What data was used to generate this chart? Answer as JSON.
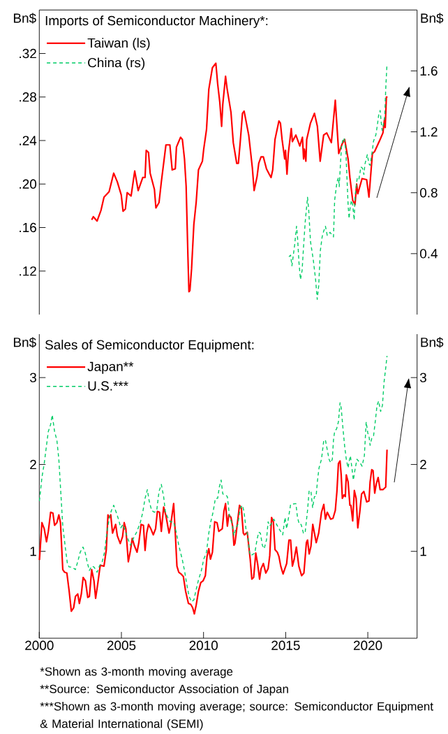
{
  "chart_data": [
    {
      "type": "line",
      "title": "Imports of Semiconductor Machinery*:",
      "ylabel": "Bn$",
      "y2label": "Bn$",
      "xlim": [
        2000,
        2023
      ],
      "ylim": [
        0.08,
        0.36
      ],
      "yticks": [
        {
          "value": 0.12,
          "label": ".12"
        },
        {
          "value": 0.16,
          "label": ".16"
        },
        {
          "value": 0.2,
          "label": ".20"
        },
        {
          "value": 0.24,
          "label": ".24"
        },
        {
          "value": 0.28,
          "label": ".28"
        },
        {
          "value": 0.32,
          "label": ".32"
        }
      ],
      "y2lim": [
        0,
        2.0
      ],
      "y2ticks": [
        0.4,
        0.8,
        1.2,
        1.6
      ],
      "tick_labels": "y",
      "legend": "top left",
      "series": [
        {
          "name": "Taiwan (ls)",
          "color": "#ff0000",
          "line_style": "solid",
          "x": [
            2003.19,
            2003.29,
            2003.52,
            2003.76,
            2003.94,
            2004.25,
            2004.53,
            2004.75,
            2004.99,
            2005.1,
            2005.24,
            2005.35,
            2005.59,
            2005.81,
            2006.02,
            2006.3,
            2006.44,
            2006.51,
            2006.65,
            2006.75,
            2007.01,
            2007.1,
            2007.29,
            2007.43,
            2007.71,
            2007.95,
            2008.09,
            2008.28,
            2008.35,
            2008.6,
            2008.71,
            2008.84,
            2008.94,
            2009.05,
            2009.11,
            2009.17,
            2009.27,
            2009.41,
            2009.55,
            2009.69,
            2009.93,
            2010.01,
            2010.18,
            2010.32,
            2010.54,
            2010.75,
            2010.86,
            2010.99,
            2011.1,
            2011.17,
            2011.34,
            2011.43,
            2011.67,
            2011.81,
            2012.02,
            2012.12,
            2012.23,
            2012.37,
            2012.47,
            2012.61,
            2012.75,
            2012.97,
            2013.08,
            2013.26,
            2013.36,
            2013.5,
            2013.64,
            2013.83,
            2014.0,
            2014.11,
            2014.21,
            2014.35,
            2014.59,
            2014.68,
            2014.78,
            2014.94,
            2014.99,
            2015.08,
            2015.16,
            2015.34,
            2015.41,
            2015.62,
            2015.86,
            2016.02,
            2016.09,
            2016.14,
            2016.23,
            2016.28,
            2016.51,
            2016.75,
            2016.93,
            2017.1,
            2017.31,
            2017.5,
            2017.78,
            2018.02,
            2018.23,
            2018.44,
            2018.59,
            2018.8,
            2018.91,
            2019.08,
            2019.22,
            2019.32,
            2019.39,
            2019.65,
            2019.93,
            2020.07,
            2020.28,
            2020.42,
            2020.75,
            2020.92,
            2021.02,
            2021.06,
            2021.13,
            2021.2
          ],
          "values": [
            0.167,
            0.17,
            0.166,
            0.176,
            0.188,
            0.193,
            0.21,
            0.202,
            0.19,
            0.175,
            0.177,
            0.192,
            0.189,
            0.212,
            0.194,
            0.206,
            0.206,
            0.231,
            0.229,
            0.21,
            0.195,
            0.178,
            0.183,
            0.202,
            0.236,
            0.236,
            0.213,
            0.214,
            0.234,
            0.243,
            0.241,
            0.223,
            0.198,
            0.133,
            0.101,
            0.102,
            0.122,
            0.163,
            0.183,
            0.213,
            0.221,
            0.232,
            0.25,
            0.287,
            0.307,
            0.311,
            0.292,
            0.275,
            0.253,
            0.273,
            0.299,
            0.288,
            0.266,
            0.238,
            0.219,
            0.219,
            0.238,
            0.265,
            0.267,
            0.256,
            0.245,
            0.215,
            0.194,
            0.207,
            0.219,
            0.225,
            0.225,
            0.214,
            0.209,
            0.206,
            0.213,
            0.241,
            0.258,
            0.256,
            0.241,
            0.223,
            0.231,
            0.209,
            0.228,
            0.251,
            0.239,
            0.245,
            0.235,
            0.243,
            0.223,
            0.232,
            0.221,
            0.241,
            0.256,
            0.265,
            0.253,
            0.221,
            0.245,
            0.247,
            0.238,
            0.277,
            0.228,
            0.237,
            0.241,
            0.223,
            0.206,
            0.185,
            0.181,
            0.2,
            0.191,
            0.205,
            0.204,
            0.188,
            0.228,
            0.23,
            0.241,
            0.247,
            0.26,
            0.252,
            0.28,
            0.28
          ]
        },
        {
          "name": "China (rs)",
          "color": "#00cc66",
          "line_style": "dashed",
          "axis": "y2",
          "x": [
            2015.2,
            2015.3,
            2015.38,
            2015.44,
            2015.55,
            2015.66,
            2015.72,
            2015.81,
            2015.9,
            2016.0,
            2016.09,
            2016.19,
            2016.33,
            2016.4,
            2016.51,
            2016.68,
            2016.82,
            2016.92,
            2017.01,
            2017.11,
            2017.22,
            2017.32,
            2017.42,
            2017.53,
            2017.7,
            2017.91,
            2017.98,
            2018.12,
            2018.21,
            2018.26,
            2018.35,
            2018.4,
            2018.46,
            2018.55,
            2018.66,
            2018.73,
            2018.8,
            2018.86,
            2018.91,
            2019.0,
            2019.08,
            2019.17,
            2019.22,
            2019.29,
            2019.36,
            2019.46,
            2019.58,
            2019.68,
            2019.76,
            2019.83,
            2019.97,
            2020.07,
            2020.14,
            2020.28,
            2020.35,
            2020.49,
            2020.59,
            2020.66,
            2020.75,
            2020.8,
            2020.87,
            2020.95,
            2021.03,
            2021.09,
            2021.16
          ],
          "values": [
            0.38,
            0.39,
            0.32,
            0.37,
            0.46,
            0.58,
            0.51,
            0.34,
            0.23,
            0.29,
            0.45,
            0.61,
            0.77,
            0.69,
            0.48,
            0.36,
            0.23,
            0.1,
            0.19,
            0.42,
            0.51,
            0.55,
            0.58,
            0.52,
            0.54,
            0.51,
            0.75,
            0.87,
            0.9,
            0.84,
            1.02,
            1.1,
            1.14,
            1.16,
            1.08,
            0.9,
            0.72,
            0.63,
            0.69,
            0.75,
            0.72,
            0.62,
            0.77,
            0.84,
            0.9,
            0.89,
            0.97,
            0.96,
            0.92,
            0.99,
            1.05,
            0.99,
            0.98,
            1.08,
            1.14,
            1.18,
            1.25,
            1.31,
            1.34,
            1.28,
            1.21,
            1.25,
            1.3,
            1.48,
            1.63
          ]
        }
      ]
    },
    {
      "type": "line",
      "title": "Sales of Semiconductor Equipment:",
      "ylabel": "Bn$",
      "y2label": "Bn$",
      "xlim": [
        2000,
        2023
      ],
      "xticks": [
        2000,
        2005,
        2010,
        2015,
        2020
      ],
      "ylim": [
        0,
        3.5
      ],
      "yticks": [
        1,
        2,
        3
      ],
      "y2lim": [
        0,
        3.5
      ],
      "y2ticks": [
        1,
        2,
        3
      ],
      "legend": "top left",
      "annotations": [
        "*Shown as 3-month moving average",
        "**Source: Semiconductor Association of Japan",
        "***Shown as 3-month moving average; source: Semiconductor Equipment & Material International (SEMI)"
      ],
      "series": [
        {
          "name": "Japan**",
          "color": "#ff0000",
          "line_style": "solid",
          "x": [
            2000.01,
            2000.16,
            2000.3,
            2000.44,
            2000.55,
            2000.69,
            2000.83,
            2000.93,
            2001.07,
            2001.19,
            2001.29,
            2001.43,
            2001.54,
            2001.68,
            2001.82,
            2001.95,
            2002.09,
            2002.2,
            2002.34,
            2002.44,
            2002.56,
            2002.67,
            2002.81,
            2002.95,
            2003.05,
            2003.19,
            2003.33,
            2003.43,
            2003.57,
            2003.71,
            2003.94,
            2004.08,
            2004.18,
            2004.25,
            2004.35,
            2004.46,
            2004.65,
            2004.75,
            2004.93,
            2005.07,
            2005.17,
            2005.27,
            2005.42,
            2005.55,
            2005.66,
            2005.78,
            2005.95,
            2006.06,
            2006.2,
            2006.34,
            2006.44,
            2006.54,
            2006.65,
            2006.79,
            2006.94,
            2007.08,
            2007.19,
            2007.32,
            2007.43,
            2007.57,
            2007.71,
            2007.9,
            2007.99,
            2008.18,
            2008.28,
            2008.38,
            2008.49,
            2008.63,
            2008.77,
            2008.91,
            2009.08,
            2009.22,
            2009.34,
            2009.44,
            2009.55,
            2009.69,
            2009.83,
            2009.97,
            2010.11,
            2010.21,
            2010.32,
            2010.42,
            2010.54,
            2010.68,
            2010.82,
            2010.93,
            2011.14,
            2011.24,
            2011.34,
            2011.45,
            2011.54,
            2011.67,
            2011.77,
            2011.85,
            2011.91,
            2012.02,
            2012.19,
            2012.3,
            2012.42,
            2012.49,
            2012.66,
            2012.73,
            2012.84,
            2012.94,
            2013.05,
            2013.18,
            2013.29,
            2013.41,
            2013.5,
            2013.64,
            2013.79,
            2013.93,
            2014.03,
            2014.14,
            2014.25,
            2014.35,
            2014.49,
            2014.59,
            2014.7,
            2014.84,
            2015.06,
            2015.2,
            2015.3,
            2015.41,
            2015.52,
            2015.65,
            2015.8,
            2015.97,
            2016.11,
            2016.26,
            2016.33,
            2016.43,
            2016.54,
            2016.65,
            2016.75,
            2016.86,
            2017.01,
            2017.18,
            2017.32,
            2017.42,
            2017.53,
            2017.74,
            2017.88,
            2018.02,
            2018.12,
            2018.21,
            2018.31,
            2018.38,
            2018.45,
            2018.55,
            2018.63,
            2018.69,
            2018.8,
            2018.91,
            2018.97,
            2019.08,
            2019.18,
            2019.29,
            2019.39,
            2019.51,
            2019.62,
            2019.76,
            2019.93,
            2020.07,
            2020.14,
            2020.24,
            2020.32,
            2020.42,
            2020.52,
            2020.63,
            2020.75,
            2020.92,
            2021.09,
            2021.17
          ],
          "values": [
            0.9,
            1.33,
            1.26,
            1.11,
            1.23,
            1.45,
            1.44,
            1.3,
            1.33,
            1.42,
            1.33,
            0.79,
            0.76,
            0.75,
            0.54,
            0.31,
            0.35,
            0.48,
            0.51,
            0.4,
            0.51,
            0.7,
            0.66,
            0.47,
            0.48,
            0.79,
            0.66,
            0.46,
            0.64,
            0.84,
            0.83,
            1.02,
            1.42,
            1.39,
            1.42,
            1.21,
            1.31,
            1.18,
            1.09,
            1.17,
            1.33,
            1.26,
            0.88,
            1.01,
            1.15,
            1.07,
            0.99,
            1.1,
            1.31,
            1.3,
            1.01,
            1.21,
            1.31,
            1.26,
            1.19,
            1.26,
            1.46,
            1.45,
            1.23,
            1.51,
            1.41,
            1.21,
            1.29,
            1.55,
            1.21,
            0.83,
            0.76,
            0.74,
            0.71,
            0.54,
            0.4,
            0.39,
            0.35,
            0.28,
            0.38,
            0.54,
            0.64,
            0.66,
            0.72,
            0.94,
            1.03,
            0.91,
            0.99,
            1.34,
            1.33,
            1.23,
            1.26,
            1.46,
            1.55,
            1.29,
            1.42,
            1.39,
            1.29,
            1.07,
            1.09,
            1.26,
            1.53,
            1.5,
            1.21,
            1.19,
            1.22,
            1.1,
            0.91,
            0.68,
            0.7,
            0.98,
            0.86,
            0.68,
            0.8,
            0.86,
            0.75,
            0.8,
            0.95,
            1.39,
            1.34,
            1.02,
            0.99,
            0.94,
            0.83,
            0.74,
            0.86,
            1.13,
            1.13,
            0.83,
            0.91,
            1.05,
            0.83,
            0.72,
            0.75,
            1.1,
            1.13,
            0.97,
            1.06,
            1.31,
            1.21,
            1.1,
            1.21,
            1.45,
            1.54,
            1.37,
            1.45,
            1.37,
            1.38,
            1.47,
            1.69,
            2.01,
            2.04,
            1.88,
            1.61,
            1.65,
            1.63,
            1.88,
            1.8,
            1.53,
            1.53,
            1.35,
            1.7,
            1.61,
            1.27,
            1.45,
            1.66,
            1.69,
            1.57,
            1.58,
            1.8,
            1.94,
            1.93,
            1.67,
            1.78,
            1.85,
            1.71,
            1.71,
            1.74,
            2.17
          ]
        },
        {
          "name": "U.S.***",
          "color": "#00cc66",
          "line_style": "dashed",
          "axis": "y2",
          "x": [
            2000.01,
            2000.16,
            2000.3,
            2000.44,
            2000.55,
            2000.69,
            2000.79,
            2000.93,
            2001.07,
            2001.19,
            2001.29,
            2001.43,
            2001.6,
            2001.71,
            2001.82,
            2001.99,
            2002.2,
            2002.34,
            2002.49,
            2002.66,
            2002.8,
            2002.91,
            2003.05,
            2003.19,
            2003.33,
            2003.52,
            2003.66,
            2003.83,
            2003.97,
            2004.11,
            2004.25,
            2004.39,
            2004.53,
            2004.68,
            2004.82,
            2004.96,
            2005.1,
            2005.24,
            2005.38,
            2005.55,
            2005.73,
            2005.95,
            2006.16,
            2006.3,
            2006.44,
            2006.58,
            2006.69,
            2006.84,
            2007.01,
            2007.15,
            2007.29,
            2007.43,
            2007.57,
            2007.68,
            2007.82,
            2007.97,
            2008.18,
            2008.35,
            2008.49,
            2008.7,
            2008.84,
            2008.98,
            2009.12,
            2009.27,
            2009.41,
            2009.55,
            2009.69,
            2009.87,
            2010.01,
            2010.18,
            2010.32,
            2010.44,
            2010.58,
            2010.72,
            2010.86,
            2010.96,
            2011.07,
            2011.17,
            2011.34,
            2011.45,
            2011.57,
            2011.74,
            2011.85,
            2011.95,
            2012.09,
            2012.23,
            2012.37,
            2012.47,
            2012.58,
            2012.7,
            2012.8,
            2012.87,
            2013.12,
            2013.26,
            2013.36,
            2013.46,
            2013.58,
            2013.69,
            2013.83,
            2013.93,
            2014.03,
            2014.28,
            2014.56,
            2014.82,
            2014.96,
            2015.06,
            2015.2,
            2015.3,
            2015.62,
            2015.72,
            2015.83,
            2015.94,
            2016.08,
            2016.18,
            2016.33,
            2016.43,
            2016.54,
            2016.64,
            2016.75,
            2016.85,
            2016.94,
            2017.03,
            2017.18,
            2017.32,
            2017.42,
            2017.53,
            2017.64,
            2017.74,
            2017.84,
            2017.91,
            2017.98,
            2018.1,
            2018.21,
            2018.31,
            2018.38,
            2018.49,
            2018.59,
            2018.69,
            2018.8,
            2018.87,
            2018.94,
            2019.05,
            2019.12,
            2019.22,
            2019.34,
            2019.53,
            2019.65,
            2019.79,
            2019.9,
            2020.0,
            2020.07,
            2020.14,
            2020.24,
            2020.35,
            2020.47,
            2020.56,
            2020.66,
            2020.78,
            2020.89,
            2020.99,
            2021.09,
            2021.17
          ],
          "values": [
            1.58,
            1.85,
            2.01,
            2.22,
            2.38,
            2.46,
            2.57,
            2.38,
            2.28,
            2.06,
            1.74,
            1.29,
            1.02,
            0.86,
            0.82,
            0.82,
            0.79,
            0.88,
            0.99,
            1.05,
            0.98,
            0.88,
            0.78,
            0.83,
            0.82,
            0.76,
            0.83,
            0.88,
            0.99,
            1.21,
            1.37,
            1.47,
            1.53,
            1.45,
            1.37,
            1.27,
            1.31,
            1.23,
            1.15,
            1.07,
            1.15,
            1.23,
            1.34,
            1.45,
            1.61,
            1.71,
            1.58,
            1.47,
            1.45,
            1.47,
            1.69,
            1.77,
            1.63,
            1.45,
            1.39,
            1.34,
            1.34,
            1.21,
            1.07,
            0.91,
            0.78,
            0.62,
            0.48,
            0.42,
            0.44,
            0.56,
            0.67,
            0.78,
            0.91,
            0.99,
            1.21,
            1.34,
            1.45,
            1.61,
            1.61,
            1.74,
            1.82,
            1.66,
            1.65,
            1.63,
            1.42,
            1.31,
            1.18,
            1.26,
            1.31,
            1.5,
            1.53,
            1.45,
            1.26,
            1.18,
            0.99,
            0.95,
            0.98,
            1.14,
            1.22,
            1.21,
            1.07,
            1.03,
            1.13,
            1.34,
            1.29,
            1.37,
            1.27,
            1.19,
            1.39,
            1.26,
            1.42,
            1.54,
            1.55,
            1.39,
            1.31,
            1.31,
            1.21,
            1.21,
            1.47,
            1.7,
            1.69,
            1.5,
            1.63,
            1.63,
            1.82,
            1.96,
            2.06,
            2.28,
            2.28,
            2.17,
            2.06,
            2.02,
            2.06,
            2.28,
            2.38,
            2.41,
            2.49,
            2.71,
            2.65,
            2.41,
            2.21,
            2.06,
            1.96,
            2.04,
            2.1,
            1.93,
            1.82,
            1.94,
            2.06,
            2.02,
            1.98,
            2.1,
            2.49,
            2.36,
            2.33,
            2.22,
            2.3,
            2.33,
            2.52,
            2.68,
            2.73,
            2.61,
            2.68,
            2.95,
            3.11,
            3.25
          ]
        }
      ]
    }
  ]
}
